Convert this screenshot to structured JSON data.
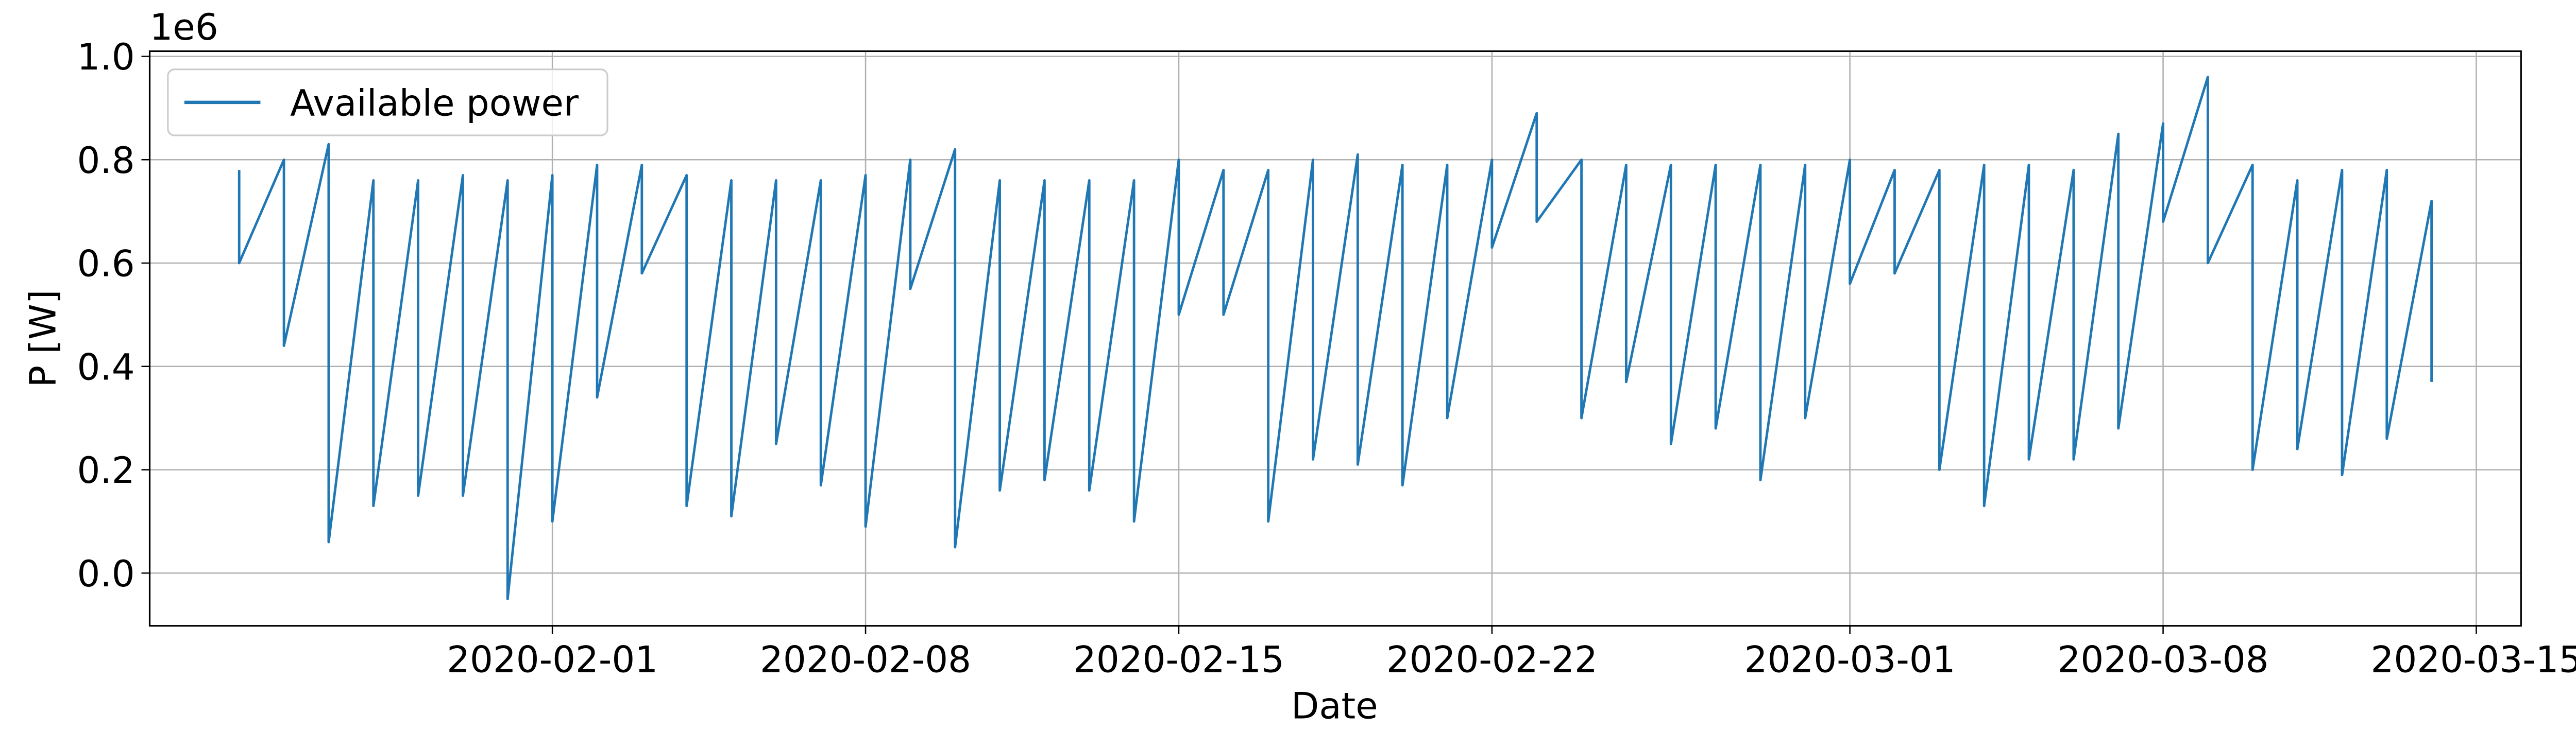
{
  "chart_data": {
    "type": "line",
    "xlabel": "Date",
    "ylabel": "P [W]",
    "y_offset_label": "1e6",
    "legend": "upper left",
    "grid": true,
    "xlim": [
      "2020-01-23",
      "2020-03-16"
    ],
    "xticks": [
      "2020-02-01",
      "2020-02-08",
      "2020-02-15",
      "2020-02-22",
      "2020-03-01",
      "2020-03-08",
      "2020-03-15"
    ],
    "ylim": [
      -102000,
      1010000
    ],
    "yticks": [
      {
        "value": 0,
        "label": "0.0"
      },
      {
        "value": 200000,
        "label": "0.2"
      },
      {
        "value": 400000,
        "label": "0.4"
      },
      {
        "value": 600000,
        "label": "0.6"
      },
      {
        "value": 800000,
        "label": "0.8"
      },
      {
        "value": 1000000,
        "label": "1.0"
      }
    ],
    "x": [
      "2020-01-25",
      "2020-01-25",
      "2020-01-26",
      "2020-01-26",
      "2020-01-27",
      "2020-01-27",
      "2020-01-28",
      "2020-01-28",
      "2020-01-29",
      "2020-01-29",
      "2020-01-30",
      "2020-01-30",
      "2020-01-31",
      "2020-01-31",
      "2020-02-01",
      "2020-02-01",
      "2020-02-02",
      "2020-02-02",
      "2020-02-03",
      "2020-02-03",
      "2020-02-04",
      "2020-02-04",
      "2020-02-05",
      "2020-02-05",
      "2020-02-06",
      "2020-02-06",
      "2020-02-07",
      "2020-02-07",
      "2020-02-08",
      "2020-02-08",
      "2020-02-09",
      "2020-02-09",
      "2020-02-10",
      "2020-02-10",
      "2020-02-11",
      "2020-02-11",
      "2020-02-12",
      "2020-02-12",
      "2020-02-13",
      "2020-02-13",
      "2020-02-14",
      "2020-02-14",
      "2020-02-15",
      "2020-02-15",
      "2020-02-16",
      "2020-02-16",
      "2020-02-17",
      "2020-02-17",
      "2020-02-18",
      "2020-02-18",
      "2020-02-19",
      "2020-02-19",
      "2020-02-20",
      "2020-02-20",
      "2020-02-21",
      "2020-02-21",
      "2020-02-22",
      "2020-02-22",
      "2020-02-23",
      "2020-02-23",
      "2020-02-24",
      "2020-02-24",
      "2020-02-25",
      "2020-02-25",
      "2020-02-26",
      "2020-02-26",
      "2020-02-27",
      "2020-02-27",
      "2020-02-28",
      "2020-02-28",
      "2020-02-29",
      "2020-02-29",
      "2020-03-01",
      "2020-03-01",
      "2020-03-02",
      "2020-03-02",
      "2020-03-03",
      "2020-03-03",
      "2020-03-04",
      "2020-03-04",
      "2020-03-05",
      "2020-03-05",
      "2020-03-06",
      "2020-03-06",
      "2020-03-07",
      "2020-03-07",
      "2020-03-08",
      "2020-03-08",
      "2020-03-09",
      "2020-03-09",
      "2020-03-10",
      "2020-03-10",
      "2020-03-11",
      "2020-03-11",
      "2020-03-12",
      "2020-03-12",
      "2020-03-13",
      "2020-03-13",
      "2020-03-14",
      "2020-03-14"
    ],
    "series": [
      {
        "name": "Available power",
        "color": "#1f77b4",
        "values": [
          780000,
          600000,
          800000,
          440000,
          830000,
          60000,
          760000,
          130000,
          760000,
          150000,
          770000,
          150000,
          760000,
          -50000,
          770000,
          100000,
          790000,
          340000,
          790000,
          580000,
          770000,
          130000,
          760000,
          110000,
          760000,
          250000,
          760000,
          170000,
          770000,
          90000,
          800000,
          550000,
          820000,
          50000,
          760000,
          160000,
          760000,
          180000,
          760000,
          160000,
          760000,
          100000,
          800000,
          500000,
          780000,
          500000,
          780000,
          100000,
          800000,
          220000,
          810000,
          210000,
          790000,
          170000,
          790000,
          300000,
          800000,
          630000,
          890000,
          680000,
          800000,
          300000,
          790000,
          370000,
          790000,
          250000,
          790000,
          280000,
          790000,
          180000,
          790000,
          300000,
          800000,
          560000,
          780000,
          580000,
          780000,
          200000,
          790000,
          130000,
          790000,
          220000,
          780000,
          220000,
          850000,
          280000,
          870000,
          680000,
          960000,
          600000,
          790000,
          200000,
          760000,
          240000,
          780000,
          190000,
          780000,
          260000,
          720000,
          370000
        ]
      }
    ]
  }
}
